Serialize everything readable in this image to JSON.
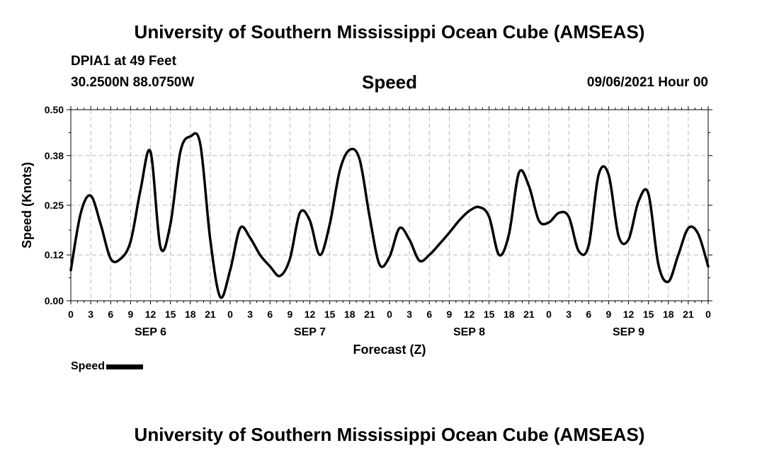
{
  "header": {
    "title": "University of Southern Mississippi Ocean Cube (AMSEAS)",
    "station": "DPIA1 at 49 Feet",
    "coords": "30.2500N  88.0750W",
    "chart_title": "Speed",
    "datetime": "09/06/2021 Hour 00"
  },
  "footer": {
    "title": "University of Southern Mississippi Ocean Cube (AMSEAS)"
  },
  "legend": {
    "label": "Speed",
    "color": "#000000"
  },
  "chart_data": {
    "type": "line",
    "title": "Speed",
    "xlabel": "Forecast (Z)",
    "ylabel": "Speed (Knots)",
    "ylim": [
      0,
      0.5
    ],
    "xlim": [
      0,
      96
    ],
    "yticks": [
      0.0,
      0.12,
      0.25,
      0.38,
      0.5
    ],
    "ytick_labels": [
      "0.00",
      "0.12",
      "0.25",
      "0.38",
      "0.50"
    ],
    "xtick_labels": [
      "0",
      "3",
      "6",
      "9",
      "12",
      "15",
      "18",
      "21",
      "0",
      "3",
      "6",
      "9",
      "12",
      "15",
      "18",
      "21",
      "0",
      "3",
      "6",
      "9",
      "12",
      "15",
      "18",
      "21",
      "0",
      "3",
      "6",
      "9",
      "12",
      "15",
      "18",
      "21",
      "0"
    ],
    "day_labels": [
      {
        "label": "SEP 6",
        "hour": 12
      },
      {
        "label": "SEP 7",
        "hour": 36
      },
      {
        "label": "SEP 8",
        "hour": 60
      },
      {
        "label": "SEP 9",
        "hour": 84
      }
    ],
    "grid": true,
    "series": [
      {
        "name": "Speed",
        "color": "#000000",
        "x": [
          0,
          1.5,
          3,
          4.5,
          6,
          7.5,
          9,
          10.5,
          12,
          13.5,
          15,
          16.5,
          18,
          19.5,
          21,
          22.5,
          24,
          25.5,
          27,
          28.5,
          30,
          31.5,
          33,
          34.5,
          36,
          37.5,
          39,
          40.5,
          42,
          43.5,
          45,
          46.5,
          48,
          49.5,
          51,
          52.5,
          54,
          55.5,
          57,
          58.5,
          60,
          61.5,
          63,
          64.5,
          66,
          67.5,
          69,
          70.5,
          72,
          73.5,
          75,
          76.5,
          78,
          79.5,
          81,
          82.5,
          84,
          85.5,
          87,
          88.5,
          90,
          91.5,
          93,
          94.5,
          96
        ],
        "values": [
          0.08,
          0.23,
          0.275,
          0.2,
          0.11,
          0.11,
          0.155,
          0.29,
          0.39,
          0.14,
          0.2,
          0.39,
          0.43,
          0.41,
          0.16,
          0.01,
          0.08,
          0.19,
          0.165,
          0.12,
          0.09,
          0.065,
          0.11,
          0.23,
          0.21,
          0.12,
          0.2,
          0.34,
          0.395,
          0.37,
          0.22,
          0.095,
          0.115,
          0.19,
          0.16,
          0.105,
          0.12,
          0.148,
          0.178,
          0.21,
          0.235,
          0.245,
          0.22,
          0.12,
          0.175,
          0.335,
          0.3,
          0.21,
          0.205,
          0.23,
          0.22,
          0.13,
          0.145,
          0.33,
          0.33,
          0.17,
          0.16,
          0.26,
          0.28,
          0.095,
          0.05,
          0.12,
          0.19,
          0.175,
          0.09
        ]
      }
    ]
  }
}
